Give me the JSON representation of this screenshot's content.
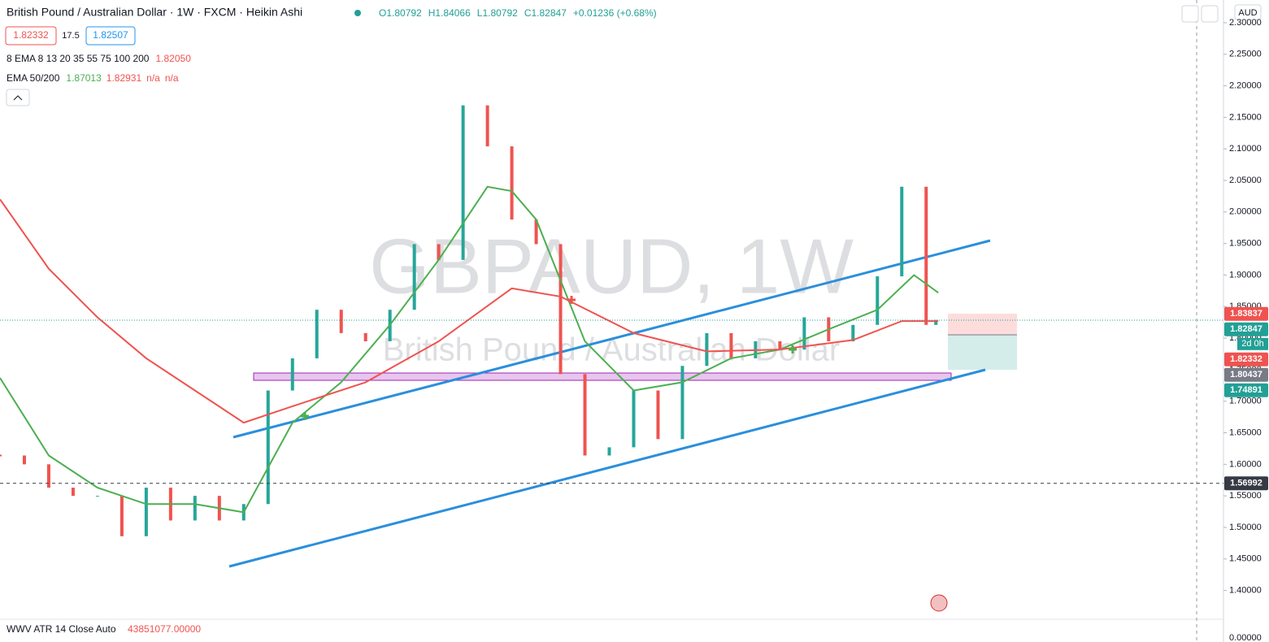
{
  "header": {
    "symbol": "British Pound / Australian Dollar · 1W · FXCM · Heikin Ashi",
    "ohlc": [
      "O1.80792",
      "H1.84066",
      "L1.80792",
      "C1.82847",
      "+0.01236 (+0.68%)"
    ],
    "sell": "1.82332",
    "spread": "17.5",
    "buy": "1.82507"
  },
  "indicators": [
    {
      "name": "8 EMA 8 13 20 35 55 75 100 200",
      "values": [
        "1.82050"
      ]
    },
    {
      "name": "EMA 50/200",
      "values": [
        "1.87013",
        "1.82931",
        "n/a",
        "n/a"
      ]
    }
  ],
  "volume": {
    "name": "WWV ATR 14 Close Auto",
    "value": "43851077.00000",
    "axis_label": "0.00000"
  },
  "watermark": {
    "main": "GBPAUD, 1W",
    "sub": "British Pound / Australian Dollar"
  },
  "currency": "AUD",
  "countdown": "2d 0h",
  "chart_data": {
    "type": "candlestick",
    "xlim": [
      0,
      251
    ],
    "ylim": [
      1.357,
      2.336
    ],
    "yticks": [
      {
        "value": 2.3,
        "label": "2.30000"
      },
      {
        "value": 2.25,
        "label": "2.25000"
      },
      {
        "value": 2.2,
        "label": "2.20000"
      },
      {
        "value": 2.15,
        "label": "2.15000"
      },
      {
        "value": 2.1,
        "label": "2.10000"
      },
      {
        "value": 2.05,
        "label": "2.05000"
      },
      {
        "value": 2.0,
        "label": "2.00000"
      },
      {
        "value": 1.95,
        "label": "1.95000"
      },
      {
        "value": 1.9,
        "label": "1.90000"
      },
      {
        "value": 1.85,
        "label": "1.85000"
      },
      {
        "value": 1.8,
        "label": "1.80000"
      },
      {
        "value": 1.75,
        "label": "1.75000"
      },
      {
        "value": 1.7,
        "label": "1.70000"
      },
      {
        "value": 1.65,
        "label": "1.65000"
      },
      {
        "value": 1.6,
        "label": "1.60000"
      },
      {
        "value": 1.55,
        "label": "1.55000"
      },
      {
        "value": 1.5,
        "label": "1.50000"
      },
      {
        "value": 1.45,
        "label": "1.45000"
      },
      {
        "value": 1.4,
        "label": "1.40000"
      }
    ],
    "series": [
      {
        "style": "candles",
        "up_color": "#26a69a",
        "down_color": "#ef5350",
        "x": [
          0,
          5,
          10,
          15,
          20,
          25,
          30,
          35,
          40,
          45,
          50,
          55,
          60,
          65,
          70,
          75,
          80,
          85,
          90,
          95,
          100,
          105,
          110,
          115,
          120,
          125,
          130,
          135,
          140,
          145,
          150,
          155,
          160,
          165,
          170,
          175,
          180,
          185,
          190,
          192
        ],
        "values": [
          1.614,
          1.6,
          1.563,
          1.55,
          1.55,
          1.486,
          1.563,
          1.511,
          1.55,
          1.511,
          1.537,
          1.717,
          1.768,
          1.845,
          1.808,
          1.795,
          1.845,
          1.949,
          1.924,
          2.169,
          2.104,
          1.988,
          1.949,
          1.743,
          1.614,
          1.627,
          1.717,
          1.64,
          1.756,
          1.808,
          1.768,
          1.795,
          1.782,
          1.833,
          1.795,
          1.821,
          1.898,
          2.04,
          1.821,
          1.829
        ]
      },
      {
        "style": "line",
        "color": "#4caf50",
        "x": [
          0,
          10,
          20,
          30,
          40,
          50,
          60,
          70,
          80,
          90,
          100,
          105,
          110,
          120,
          130,
          140,
          150,
          160,
          170,
          180,
          187.5,
          192.5
        ],
        "values": [
          1.737,
          1.614,
          1.563,
          1.537,
          1.537,
          1.524,
          1.666,
          1.73,
          1.821,
          1.924,
          2.04,
          2.033,
          1.988,
          1.795,
          1.717,
          1.73,
          1.768,
          1.782,
          1.814,
          1.845,
          1.9,
          1.872
        ]
      },
      {
        "style": "line",
        "color": "#ef5350",
        "x": [
          0,
          10,
          20,
          30,
          40,
          50,
          60,
          75,
          90,
          105,
          115,
          130,
          145,
          160,
          175,
          185,
          192.5
        ],
        "values": [
          2.02,
          1.91,
          1.833,
          1.768,
          1.717,
          1.666,
          1.692,
          1.73,
          1.795,
          1.879,
          1.866,
          1.808,
          1.779,
          1.782,
          1.797,
          1.827,
          1.827
        ]
      }
    ],
    "price_tags": [
      {
        "value": 1.83837,
        "color": "#ef5350"
      },
      {
        "value": 1.82847,
        "color": "#22a095",
        "line": true
      },
      {
        "value": 1.82332,
        "color": "#ef5350"
      },
      {
        "value": 1.80437,
        "color": "#787b86"
      },
      {
        "value": 1.74891,
        "color": "#22a095"
      },
      {
        "value": 1.56992,
        "color": "#363a45",
        "line": true
      }
    ]
  }
}
